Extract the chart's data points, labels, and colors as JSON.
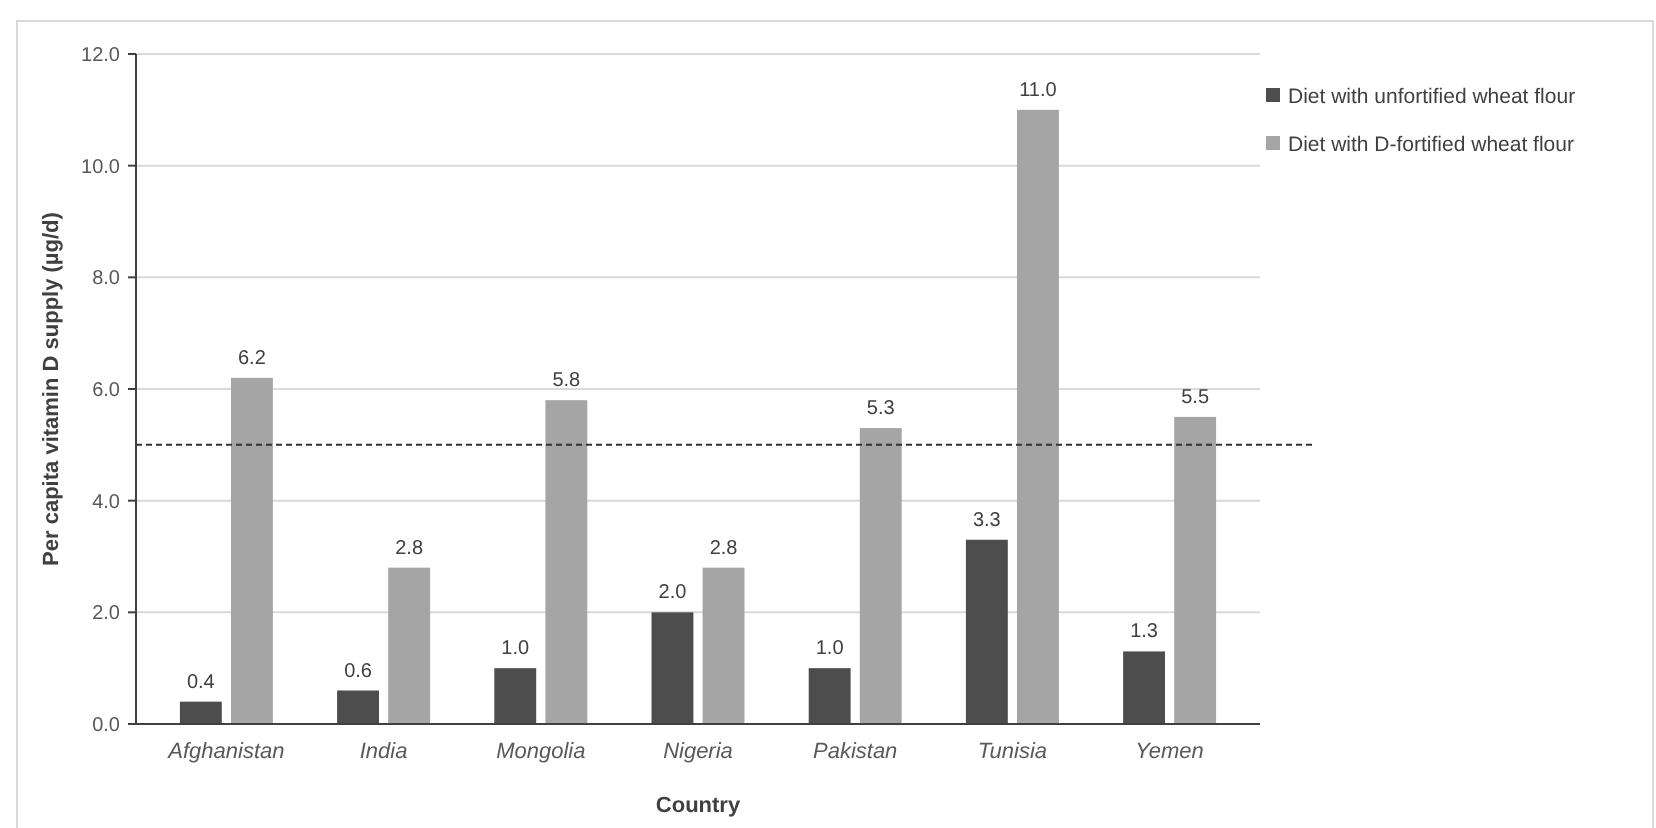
{
  "chart_data": {
    "type": "bar",
    "xlabel": "Country",
    "ylabel": "Per capita vitamin D supply (µg/d)",
    "categories": [
      "Afghanistan",
      "India",
      "Mongolia",
      "Nigeria",
      "Pakistan",
      "Tunisia",
      "Yemen"
    ],
    "series": [
      {
        "name": "Diet with unfortified wheat flour",
        "color": "#4d4d4d",
        "values": [
          0.4,
          0.6,
          1.0,
          2.0,
          1.0,
          3.3,
          1.3
        ],
        "value_labels": [
          "0.4",
          "0.6",
          "1.0",
          "2.0",
          "1.0",
          "3.3",
          "1.3"
        ]
      },
      {
        "name": "Diet with D-fortified wheat flour",
        "color": "#a5a5a5",
        "values": [
          6.2,
          2.8,
          5.8,
          2.8,
          5.3,
          11.0,
          5.5
        ],
        "value_labels": [
          "6.2",
          "2.8",
          "5.8",
          "2.8",
          "5.3",
          "11.0",
          "5.5"
        ]
      }
    ],
    "ylim": [
      0,
      12
    ],
    "yticks": [
      {
        "value": 0,
        "label": "0.0"
      },
      {
        "value": 2,
        "label": "2.0"
      },
      {
        "value": 4,
        "label": "4.0"
      },
      {
        "value": 6,
        "label": "6.0"
      },
      {
        "value": 8,
        "label": "8.0"
      },
      {
        "value": 10,
        "label": "10.0"
      },
      {
        "value": 12,
        "label": "12.0"
      }
    ],
    "ref_lines": [
      {
        "axis": "y",
        "value": 5,
        "color": "#333333",
        "line_style": "dashed"
      }
    ],
    "grid": "y",
    "legend": "top right"
  }
}
